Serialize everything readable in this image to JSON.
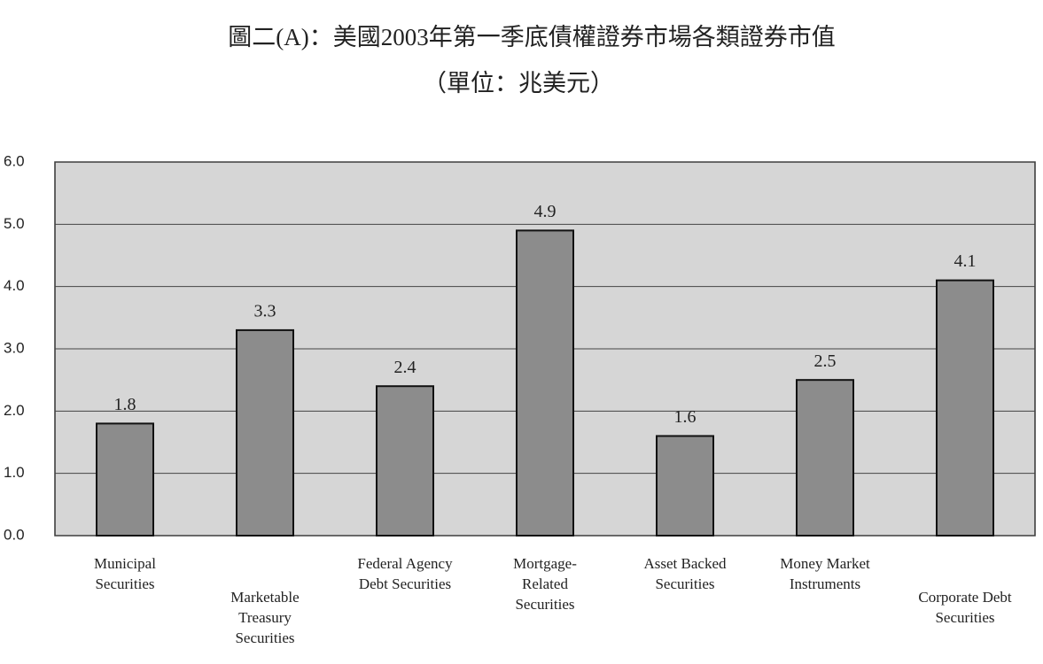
{
  "chart_data": {
    "type": "bar",
    "title": "圖二(A)：美國2003年第一季底債權證券市場各類證券市值",
    "subtitle": "（單位：兆美元）",
    "categories": [
      [
        "Municipal",
        "Securities"
      ],
      [
        "Marketable",
        "Treasury",
        "Securities"
      ],
      [
        "Federal Agency",
        "Debt Securities"
      ],
      [
        "Mortgage-",
        "Related",
        "Securities"
      ],
      [
        "Asset Backed",
        "Securities"
      ],
      [
        "Money Market",
        "Instruments"
      ],
      [
        "Corporate Debt",
        "Securities"
      ]
    ],
    "values": [
      1.8,
      3.3,
      2.4,
      4.9,
      1.6,
      2.5,
      4.1
    ],
    "color": "#8c8c8c",
    "ylim": [
      0,
      6
    ],
    "yticks": [
      {
        "value": 0,
        "label": "0.0"
      },
      {
        "value": 1,
        "label": "1.0"
      },
      {
        "value": 2,
        "label": "2.0"
      },
      {
        "value": 3,
        "label": "3.0"
      },
      {
        "value": 4,
        "label": "4.0"
      },
      {
        "value": 5,
        "label": "5.0"
      },
      {
        "value": 6,
        "label": "6.0"
      }
    ],
    "grid": true
  }
}
